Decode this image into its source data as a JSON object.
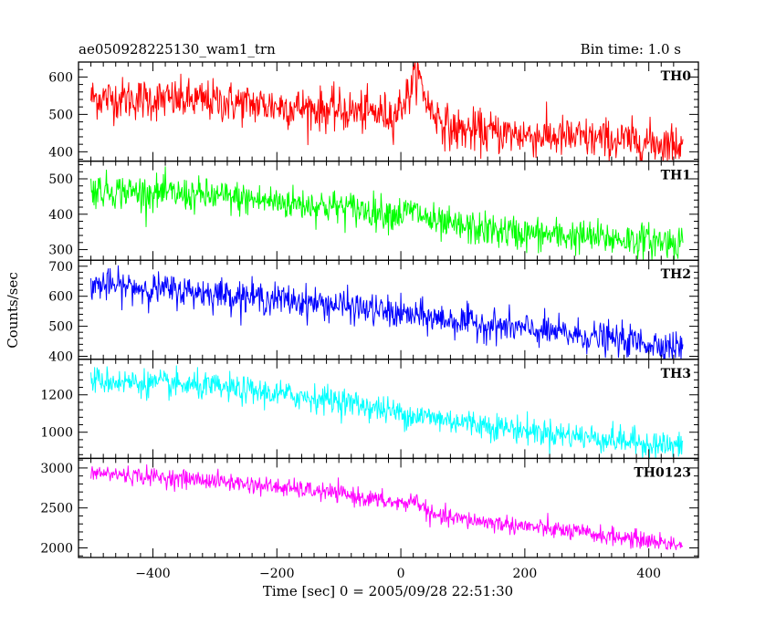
{
  "header": {
    "left_title": "ae050928225130_wam1_trn",
    "right_title": "Bin time: 1.0 s"
  },
  "chart_data": {
    "type": "line",
    "xlabel": "Time [sec] 0 = 2005/09/28 22:51:30",
    "ylabel": "Counts/sec",
    "xlim": [
      -520,
      480
    ],
    "x_range": [
      -500,
      455
    ],
    "xticks": [
      -400,
      -200,
      0,
      200,
      400
    ],
    "xtick_labels": [
      "−400",
      "−200",
      "0",
      "200",
      "400"
    ],
    "bin_time_s": 1.0,
    "panels": [
      {
        "label": "TH0",
        "color": "#ff0000",
        "ylim": [
          375,
          640
        ],
        "yticks": [
          400,
          500,
          600
        ],
        "trend": [
          [
            -500,
            545
          ],
          [
            -300,
            535
          ],
          [
            -100,
            510
          ],
          [
            -10,
            500
          ],
          [
            15,
            560
          ],
          [
            25,
            620
          ],
          [
            45,
            520
          ],
          [
            80,
            460
          ],
          [
            200,
            445
          ],
          [
            455,
            420
          ]
        ],
        "noise_sd": 28
      },
      {
        "label": "TH1",
        "color": "#00ff00",
        "ylim": [
          270,
          550
        ],
        "yticks": [
          300,
          400,
          500
        ],
        "trend": [
          [
            -500,
            470
          ],
          [
            -300,
            450
          ],
          [
            -100,
            420
          ],
          [
            0,
            400
          ],
          [
            20,
            410
          ],
          [
            60,
            370
          ],
          [
            200,
            345
          ],
          [
            455,
            320
          ]
        ],
        "noise_sd": 24
      },
      {
        "label": "TH2",
        "color": "#0000ff",
        "ylim": [
          390,
          720
        ],
        "yticks": [
          400,
          500,
          600,
          700
        ],
        "trend": [
          [
            -500,
            640
          ],
          [
            -300,
            610
          ],
          [
            -100,
            570
          ],
          [
            0,
            540
          ],
          [
            200,
            490
          ],
          [
            455,
            430
          ]
        ],
        "noise_sd": 26
      },
      {
        "label": "TH3",
        "color": "#00ffff",
        "ylim": [
          860,
          1390
        ],
        "yticks": [
          1000,
          1200
        ],
        "trend": [
          [
            -500,
            1280
          ],
          [
            -300,
            1240
          ],
          [
            -100,
            1170
          ],
          [
            0,
            1100
          ],
          [
            200,
            1010
          ],
          [
            455,
            920
          ]
        ],
        "noise_sd": 36
      },
      {
        "label": "TH0123",
        "color": "#ff00ff",
        "ylim": [
          1880,
          3120
        ],
        "yticks": [
          2000,
          2500,
          3000
        ],
        "trend": [
          [
            -500,
            2940
          ],
          [
            -300,
            2840
          ],
          [
            -100,
            2680
          ],
          [
            0,
            2550
          ],
          [
            25,
            2600
          ],
          [
            50,
            2400
          ],
          [
            200,
            2270
          ],
          [
            455,
            2040
          ]
        ],
        "noise_sd": 55
      }
    ]
  }
}
